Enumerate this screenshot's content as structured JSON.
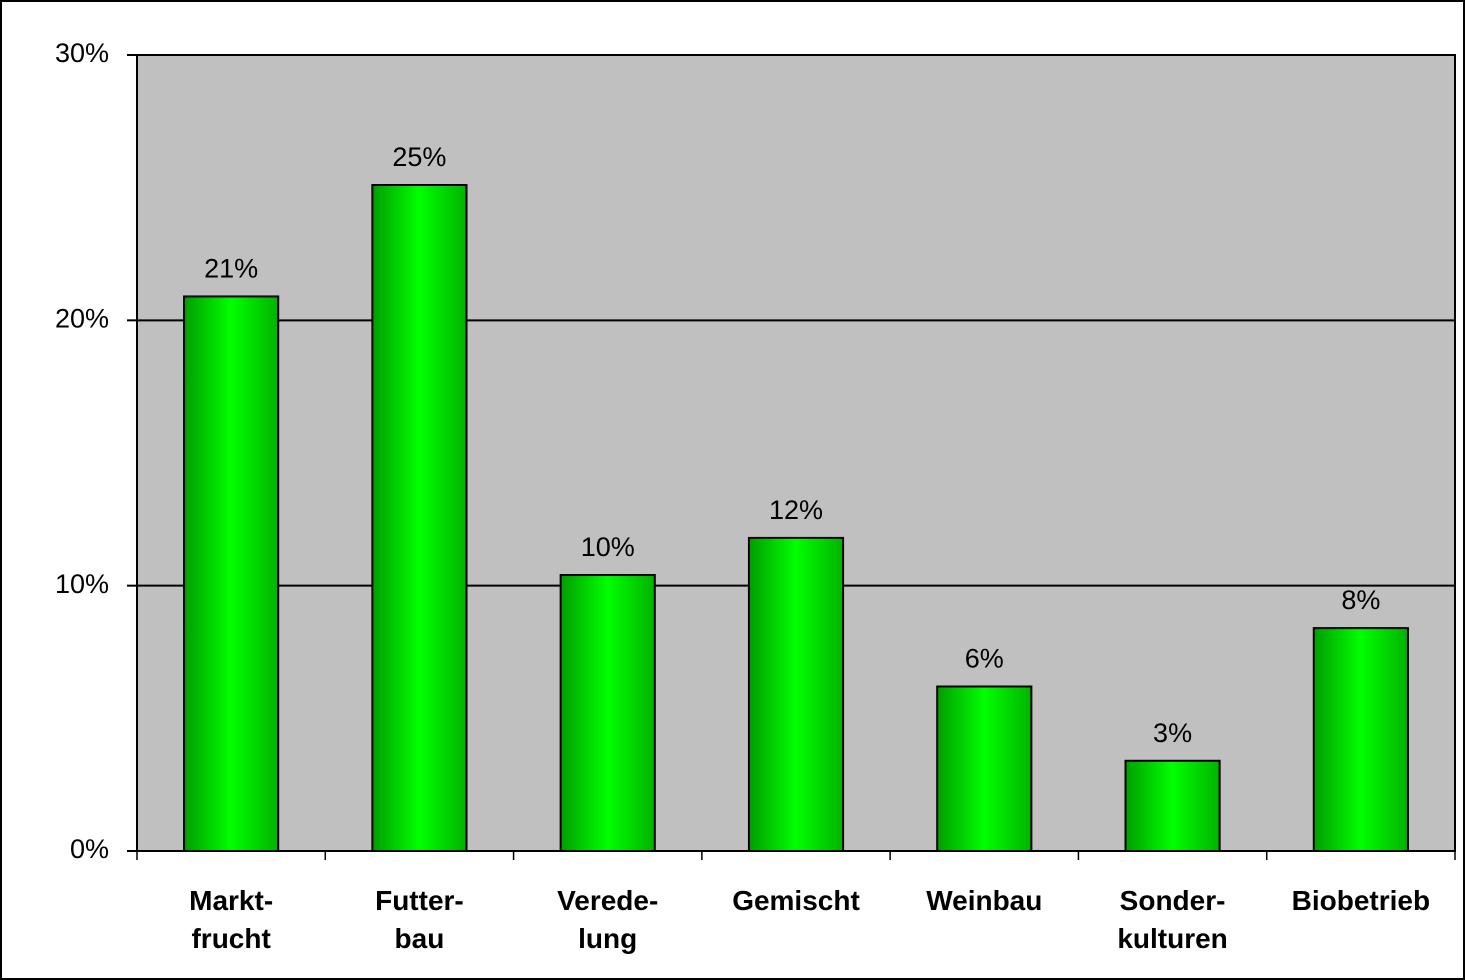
{
  "chart_data": {
    "type": "bar",
    "categories": [
      "Markt-\nfrucht",
      "Futter-\nbau",
      "Verede-\nlung",
      "Gemischt",
      "Weinbau",
      "Sonder-\nkulturen",
      "Biobetrieb"
    ],
    "values": [
      20.9,
      25.1,
      10.4,
      11.8,
      6.2,
      3.4,
      8.4
    ],
    "value_labels": [
      "21%",
      "25%",
      "10%",
      "12%",
      "6%",
      "3%",
      "8%"
    ],
    "color": "#00ff00",
    "ylim": [
      0,
      30
    ],
    "yticks": [
      {
        "value": 0,
        "label": "0%"
      },
      {
        "value": 10,
        "label": "10%"
      },
      {
        "value": 20,
        "label": "20%"
      },
      {
        "value": 30,
        "label": "30%"
      }
    ],
    "grid": true
  }
}
